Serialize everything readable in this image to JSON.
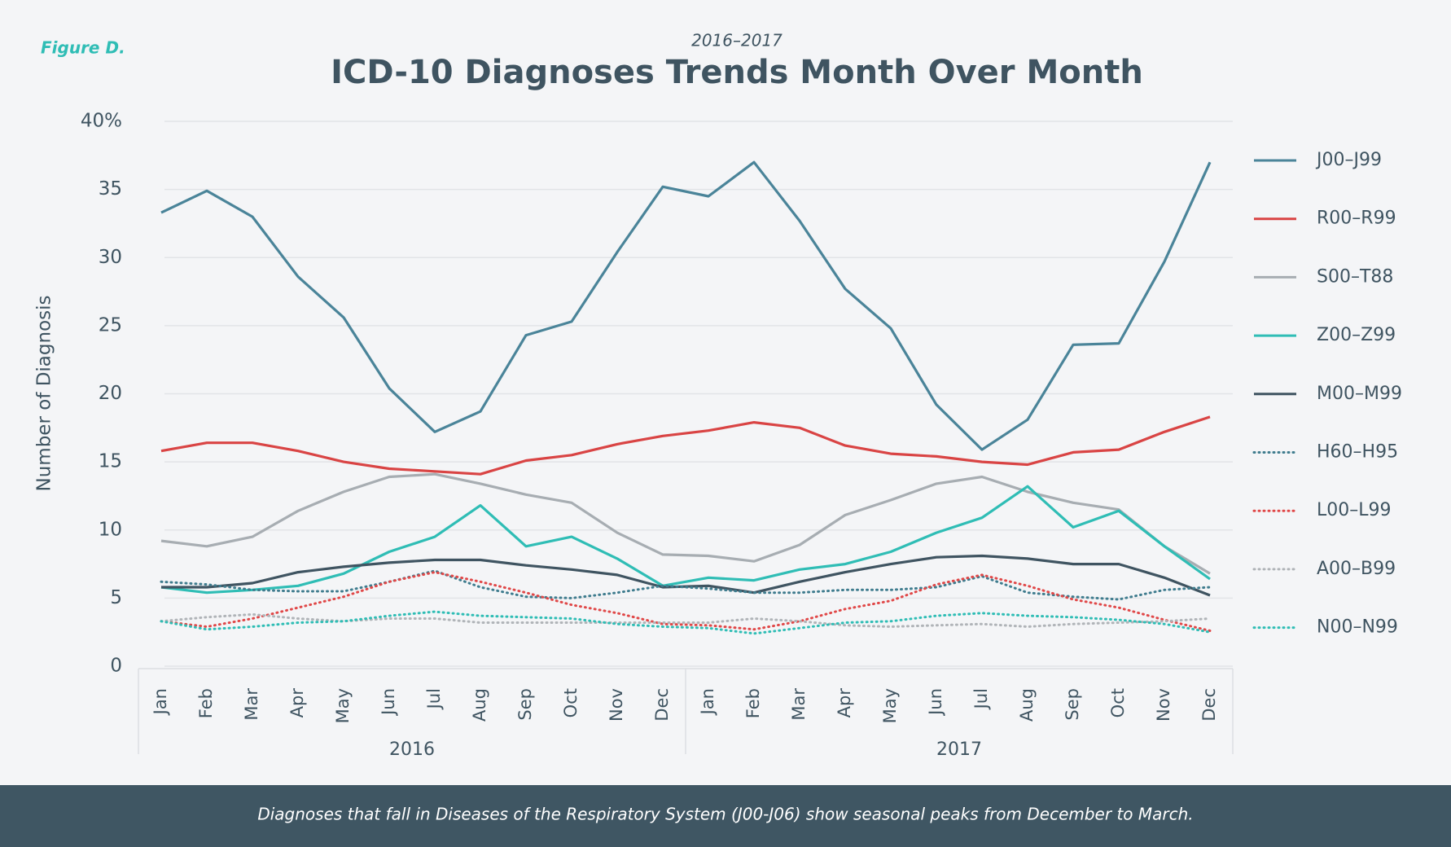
{
  "figure_label": "Figure D.",
  "chart_data": {
    "type": "line",
    "subtitle": "2016–2017",
    "title": "ICD-10 Diagnoses Trends Month Over Month",
    "y_label": "Number of Diagnosis",
    "categories": [
      "Jan",
      "Feb",
      "Mar",
      "Apr",
      "May",
      "Jun",
      "Jul",
      "Aug",
      "Sep",
      "Oct",
      "Nov",
      "Dec",
      "Jan",
      "Feb",
      "Mar",
      "Apr",
      "May",
      "Jun",
      "Jul",
      "Aug",
      "Sep",
      "Oct",
      "Nov",
      "Dec"
    ],
    "x_groups": [
      "2016",
      "2017"
    ],
    "ylim": [
      0,
      40
    ],
    "yticks": [
      0,
      5,
      10,
      15,
      20,
      25,
      30,
      35,
      {
        "value": 40,
        "label": "40%"
      }
    ],
    "grid": true,
    "legend": "right",
    "series": [
      {
        "name": "J00–J99",
        "color": "#4a8499",
        "style": "solid",
        "values": [
          33.3,
          34.9,
          33.0,
          28.6,
          25.6,
          20.4,
          17.2,
          18.7,
          24.3,
          25.3,
          30.4,
          35.2,
          34.5,
          37.0,
          32.7,
          27.7,
          24.8,
          19.2,
          15.9,
          18.1,
          23.6,
          23.7,
          29.7,
          37.0
        ]
      },
      {
        "name": "R00–R99",
        "color": "#d94444",
        "style": "solid",
        "values": [
          15.8,
          16.4,
          16.4,
          15.8,
          15.0,
          14.5,
          14.3,
          14.1,
          15.1,
          15.5,
          16.3,
          16.9,
          17.3,
          17.9,
          17.5,
          16.2,
          15.6,
          15.4,
          15.0,
          14.8,
          15.7,
          15.9,
          17.2,
          18.3
        ]
      },
      {
        "name": "S00–T88",
        "color": "#a7adb2",
        "style": "solid",
        "values": [
          9.2,
          8.8,
          9.5,
          11.4,
          12.8,
          13.9,
          14.1,
          13.4,
          12.6,
          12.0,
          9.8,
          8.2,
          8.1,
          7.7,
          8.9,
          11.1,
          12.2,
          13.4,
          13.9,
          12.8,
          12.0,
          11.5,
          8.8,
          6.8
        ]
      },
      {
        "name": "Z00–Z99",
        "color": "#2fbdb5",
        "style": "solid",
        "values": [
          5.8,
          5.4,
          5.6,
          5.9,
          6.8,
          8.4,
          9.5,
          11.8,
          8.8,
          9.5,
          7.9,
          5.9,
          6.5,
          6.3,
          7.1,
          7.5,
          8.4,
          9.8,
          10.9,
          13.2,
          10.2,
          11.4,
          8.8,
          6.4
        ]
      },
      {
        "name": "M00–M99",
        "color": "#3f5461",
        "style": "solid",
        "values": [
          5.8,
          5.8,
          6.1,
          6.9,
          7.3,
          7.6,
          7.8,
          7.8,
          7.4,
          7.1,
          6.7,
          5.8,
          5.9,
          5.4,
          6.2,
          6.9,
          7.5,
          8.0,
          8.1,
          7.9,
          7.5,
          7.5,
          6.5,
          5.2
        ]
      },
      {
        "name": "H60–H95",
        "color": "#3f7c8e",
        "style": "dotted",
        "values": [
          6.2,
          6.0,
          5.6,
          5.5,
          5.5,
          6.2,
          7.0,
          5.8,
          5.1,
          5.0,
          5.4,
          5.9,
          5.7,
          5.4,
          5.4,
          5.6,
          5.6,
          5.8,
          6.6,
          5.4,
          5.1,
          4.9,
          5.6,
          5.8
        ]
      },
      {
        "name": "L00–L99",
        "color": "#e04848",
        "style": "dotted",
        "values": [
          3.3,
          2.9,
          3.5,
          4.3,
          5.1,
          6.2,
          6.9,
          6.2,
          5.4,
          4.5,
          3.9,
          3.1,
          3.0,
          2.7,
          3.3,
          4.2,
          4.8,
          6.0,
          6.7,
          5.9,
          4.9,
          4.3,
          3.4,
          2.6
        ]
      },
      {
        "name": "A00–B99",
        "color": "#b0b4b8",
        "style": "dotted",
        "values": [
          3.3,
          3.6,
          3.8,
          3.5,
          3.3,
          3.5,
          3.5,
          3.2,
          3.2,
          3.2,
          3.2,
          3.2,
          3.2,
          3.5,
          3.3,
          3.0,
          2.9,
          3.0,
          3.1,
          2.9,
          3.1,
          3.2,
          3.3,
          3.5
        ]
      },
      {
        "name": "N00–N99",
        "color": "#2fbdb5",
        "style": "dotted",
        "values": [
          3.3,
          2.7,
          2.9,
          3.2,
          3.3,
          3.7,
          4.0,
          3.7,
          3.6,
          3.5,
          3.1,
          2.9,
          2.8,
          2.4,
          2.8,
          3.2,
          3.3,
          3.7,
          3.9,
          3.7,
          3.6,
          3.4,
          3.1,
          2.5
        ]
      }
    ]
  },
  "footer": "Diagnoses that fall in Diseases of the Respiratory System (J00-J06) show seasonal peaks from December to March."
}
